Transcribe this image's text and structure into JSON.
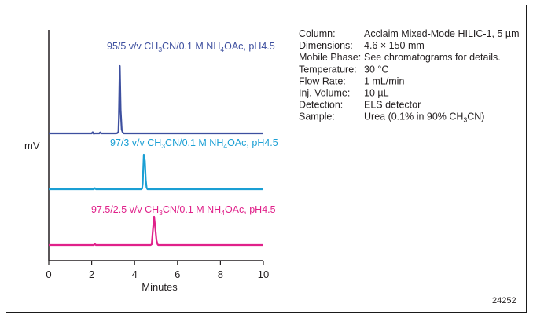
{
  "chart_data": {
    "type": "line",
    "xlabel": "Minutes",
    "ylabel": "mV",
    "xlim": [
      0,
      10
    ],
    "x_ticks": [
      "0",
      "2",
      "4",
      "6",
      "8",
      "10"
    ],
    "series": [
      {
        "name": "95/5 v/v CH3CN/0.1 M NH4OAc, pH4.5",
        "label_parts": [
          "95/5 v/v CH",
          "3",
          "CN/0.1 M NH",
          "4",
          "OAc, pH4.5"
        ],
        "color": "#3d4f9f",
        "points": [
          [
            0.0,
            0
          ],
          [
            2.0,
            0
          ],
          [
            2.05,
            1.5
          ],
          [
            2.1,
            -0.5
          ],
          [
            2.15,
            0
          ],
          [
            2.35,
            0
          ],
          [
            2.4,
            1.2
          ],
          [
            2.45,
            0
          ],
          [
            3.15,
            0
          ],
          [
            3.2,
            0.5
          ],
          [
            3.25,
            2
          ],
          [
            3.27,
            20
          ],
          [
            3.31,
            86
          ],
          [
            3.35,
            30
          ],
          [
            3.4,
            5
          ],
          [
            3.45,
            1
          ],
          [
            3.5,
            0
          ],
          [
            10.0,
            0
          ]
        ]
      },
      {
        "name": "97/3 v/v CH3CN/0.1 M NH4OAc, pH4.5",
        "label_parts": [
          "97/3 v/v CH",
          "3",
          "CN/0.1 M NH",
          "4",
          "OAc, pH4.5"
        ],
        "color": "#1a9fd4",
        "points": [
          [
            0.0,
            0
          ],
          [
            2.1,
            0
          ],
          [
            2.15,
            1.3
          ],
          [
            2.2,
            0
          ],
          [
            4.3,
            0
          ],
          [
            4.35,
            0.8
          ],
          [
            4.38,
            8
          ],
          [
            4.43,
            44
          ],
          [
            4.48,
            36
          ],
          [
            4.52,
            12
          ],
          [
            4.56,
            2
          ],
          [
            4.6,
            0
          ],
          [
            10.0,
            0
          ]
        ]
      },
      {
        "name": "97.5/2.5 v/v CH3CN/0.1 M NH4OAc, pH4.5",
        "label_parts": [
          "97.5/2.5 v/v CH",
          "3",
          "CN/0.1 M NH",
          "4",
          "OAc, pH4.5"
        ],
        "color": "#e0218a",
        "points": [
          [
            0.0,
            0
          ],
          [
            2.1,
            0
          ],
          [
            2.15,
            1.2
          ],
          [
            2.2,
            0
          ],
          [
            4.75,
            0
          ],
          [
            4.8,
            1
          ],
          [
            4.85,
            18
          ],
          [
            4.91,
            36
          ],
          [
            4.97,
            20
          ],
          [
            5.02,
            6
          ],
          [
            5.07,
            1
          ],
          [
            5.1,
            0
          ],
          [
            10.0,
            0
          ]
        ]
      }
    ],
    "conditions": [
      {
        "label": "Column:",
        "value": [
          "Acclaim Mixed-Mode HILIC-1, 5 µm"
        ]
      },
      {
        "label": "Dimensions:",
        "value": [
          "4.6 × 150 mm"
        ]
      },
      {
        "label": "Mobile Phase:",
        "value": [
          "See chromatograms for details."
        ]
      },
      {
        "label": "Temperature:",
        "value": [
          "30 °C"
        ]
      },
      {
        "label": "Flow Rate:",
        "value": [
          "1 mL/min"
        ]
      },
      {
        "label": "Inj. Volume:",
        "value": [
          "10 µL"
        ]
      },
      {
        "label": "Detection:",
        "value": [
          "ELS detector"
        ]
      },
      {
        "label": "Sample:",
        "value": [
          "Urea (0.1% in 90% CH",
          "3",
          "CN)"
        ]
      }
    ],
    "figure_id": "24252"
  }
}
